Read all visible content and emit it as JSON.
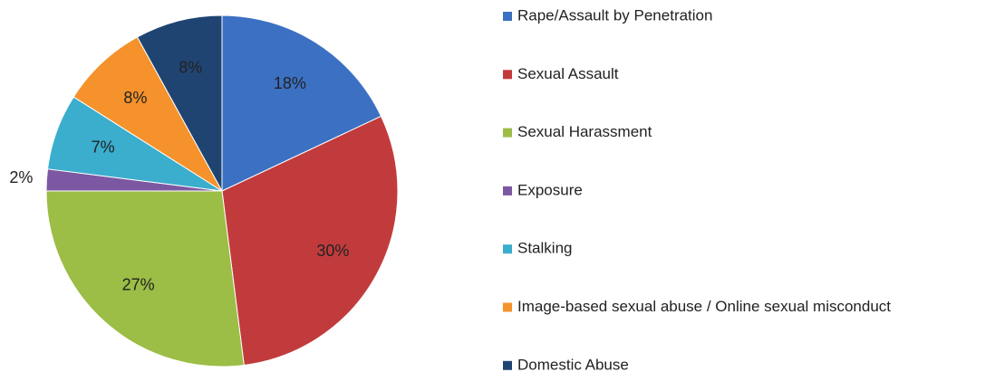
{
  "chart_data": {
    "type": "pie",
    "categories": [
      "Rape/Assault by Penetration",
      "Sexual Assault",
      "Sexual Harassment",
      "Exposure",
      "Stalking",
      "Image-based sexual abuse / Online sexual misconduct",
      "Domestic Abuse"
    ],
    "values": [
      18,
      30,
      27,
      2,
      7,
      8,
      8
    ],
    "value_labels": [
      "18%",
      "30%",
      "27%",
      "2%",
      "7%",
      "8%",
      "8%"
    ],
    "colors": [
      "#3c70c2",
      "#c23b3c",
      "#9cbd46",
      "#7c58a3",
      "#3badcd",
      "#f5922c",
      "#1f4472"
    ],
    "legend": "right"
  }
}
